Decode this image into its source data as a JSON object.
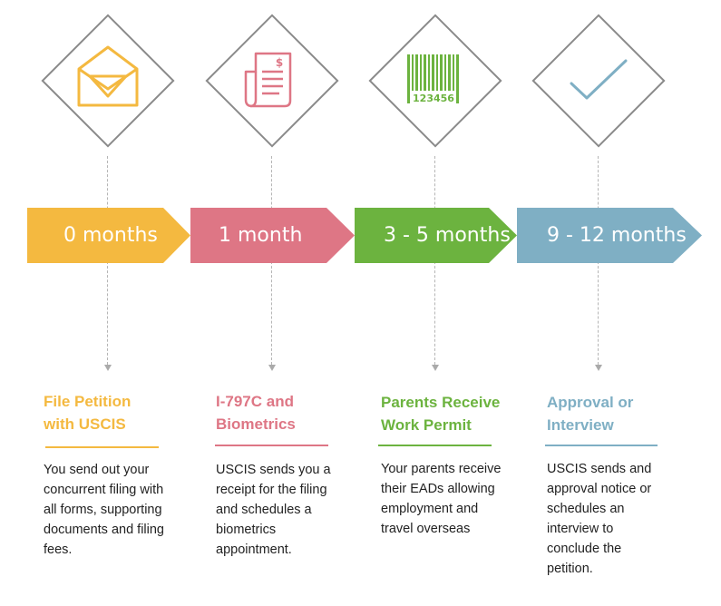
{
  "colors": {
    "yellow": "#F4B940",
    "pink": "#DE7685",
    "green": "#6CB33F",
    "blue": "#7FAFC4",
    "outline": "#8a8a8a"
  },
  "steps": [
    {
      "icon": "envelope-icon",
      "period": "0 months",
      "title_line1": "File Petition",
      "title_line2": "with USCIS",
      "desc": [
        "You send out your",
        "concurrent filing with",
        "all forms, supporting",
        "documents and filing",
        "fees."
      ]
    },
    {
      "icon": "document-icon",
      "period": "1 month",
      "title_line1": "I-797C and",
      "title_line2": "Biometrics",
      "desc": [
        "USCIS sends you a",
        "receipt for the filing",
        "and schedules a",
        "biometrics",
        "appointment."
      ]
    },
    {
      "icon": "barcode-icon",
      "period": "3 - 5 months",
      "barcode_number": "123456",
      "title_line1": "Parents Receive",
      "title_line2": "Work Permit",
      "desc": [
        "Your parents receive",
        "their EADs allowing",
        "employment and",
        "travel overseas"
      ]
    },
    {
      "icon": "checkmark-icon",
      "period": "9 - 12 months",
      "title_line1": "Approval or",
      "title_line2": "Interview",
      "desc": [
        "USCIS sends and",
        "approval notice or",
        "schedules an",
        "interview to",
        "conclude the",
        "petition."
      ]
    }
  ]
}
